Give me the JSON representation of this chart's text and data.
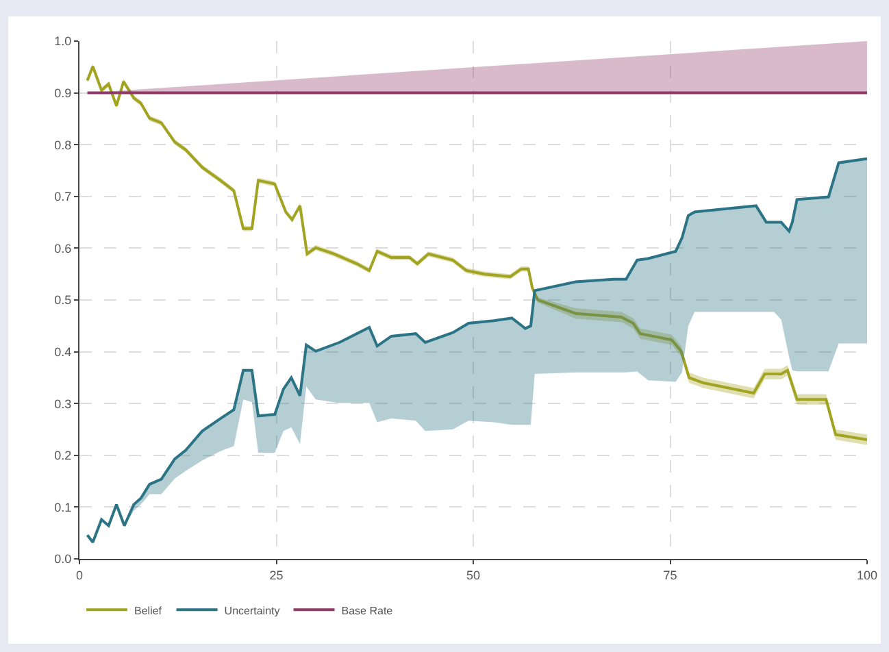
{
  "chart_data": {
    "type": "line",
    "xlim": [
      0,
      100
    ],
    "xticks": [
      0,
      25,
      50,
      75,
      100
    ],
    "ylim": [
      0,
      1
    ],
    "yticks": [
      {
        "value": 0,
        "label": "0.0"
      },
      0.1,
      0.2,
      0.3,
      0.4,
      0.5,
      0.6,
      0.7,
      0.8,
      0.9,
      {
        "value": 1,
        "label": "1.0"
      }
    ],
    "grid": true,
    "legend": "bottom left",
    "marker": "none",
    "line_style": "solid",
    "series": [
      {
        "name": "Belief",
        "color": "#a3a322",
        "x": [
          1,
          1.7,
          2.8,
          3.7,
          4.7,
          5.6,
          6.9,
          7.8,
          8.9,
          10.4,
          12.1,
          13.5,
          15.6,
          17.9,
          19.6,
          20.8,
          21.9,
          22.7,
          24.8,
          26.2,
          27,
          28,
          28.9,
          30,
          32.3,
          35.2,
          36.8,
          37.8,
          39.6,
          41.9,
          42.9,
          44.3,
          47.4,
          49.1,
          51.4,
          54.7,
          56.1,
          57,
          57.5,
          58.2,
          63,
          68.8,
          70.3,
          71.2,
          75.2,
          76.4,
          77.4,
          79.2,
          85.6,
          87,
          89.1,
          89.9,
          91.1,
          94.8,
          96,
          100
        ],
        "values": [
          0.924,
          0.951,
          0.905,
          0.917,
          0.875,
          0.922,
          0.89,
          0.88,
          0.851,
          0.842,
          0.805,
          0.79,
          0.756,
          0.731,
          0.711,
          0.638,
          0.638,
          0.731,
          0.724,
          0.67,
          0.655,
          0.682,
          0.589,
          0.601,
          0.589,
          0.57,
          0.557,
          0.594,
          0.582,
          0.582,
          0.57,
          0.589,
          0.577,
          0.557,
          0.55,
          0.545,
          0.56,
          0.56,
          0.523,
          0.5,
          0.474,
          0.467,
          0.455,
          0.435,
          0.423,
          0.401,
          0.35,
          0.34,
          0.32,
          0.357,
          0.357,
          0.364,
          0.308,
          0.308,
          0.24,
          0.23
        ],
        "lower": [
          0.919,
          0.946,
          0.9,
          0.912,
          0.87,
          0.917,
          0.885,
          0.875,
          0.846,
          0.837,
          0.8,
          0.785,
          0.751,
          0.726,
          0.706,
          0.633,
          0.633,
          0.726,
          0.719,
          0.665,
          0.65,
          0.677,
          0.584,
          0.596,
          0.584,
          0.565,
          0.552,
          0.589,
          0.577,
          0.577,
          0.565,
          0.584,
          0.572,
          0.552,
          0.545,
          0.54,
          0.555,
          0.555,
          0.518,
          0.495,
          0.464,
          0.457,
          0.445,
          0.425,
          0.413,
          0.391,
          0.34,
          0.33,
          0.31,
          0.347,
          0.347,
          0.354,
          0.298,
          0.298,
          0.23,
          0.22
        ],
        "upper": [
          0.929,
          0.956,
          0.91,
          0.922,
          0.88,
          0.927,
          0.895,
          0.885,
          0.856,
          0.847,
          0.81,
          0.795,
          0.761,
          0.736,
          0.716,
          0.643,
          0.643,
          0.736,
          0.729,
          0.675,
          0.66,
          0.687,
          0.594,
          0.606,
          0.594,
          0.575,
          0.562,
          0.599,
          0.587,
          0.587,
          0.575,
          0.594,
          0.582,
          0.562,
          0.555,
          0.55,
          0.565,
          0.565,
          0.528,
          0.505,
          0.484,
          0.477,
          0.465,
          0.445,
          0.433,
          0.411,
          0.36,
          0.35,
          0.33,
          0.367,
          0.367,
          0.374,
          0.318,
          0.318,
          0.25,
          0.24
        ]
      },
      {
        "name": "Uncertainty",
        "color": "#2b7485",
        "x": [
          1,
          1.7,
          2.8,
          3.7,
          4.7,
          5.7,
          6.9,
          7.8,
          8.9,
          10.4,
          12.1,
          13.5,
          15.6,
          17.9,
          19.6,
          20.8,
          21.9,
          22.7,
          24.8,
          25.9,
          26.9,
          28,
          28.8,
          30,
          33,
          36.8,
          37.8,
          39.6,
          42.7,
          43.9,
          47.4,
          49.4,
          52.6,
          54.9,
          56.6,
          57.3,
          57.8,
          63,
          67.7,
          69.4,
          70.8,
          72.2,
          75.7,
          76.5,
          77.3,
          78.1,
          85.9,
          87.2,
          88.2,
          89.1,
          90.1,
          90.5,
          91.1,
          95.1,
          96.4,
          100
        ],
        "values": [
          0.046,
          0.032,
          0.076,
          0.064,
          0.105,
          0.064,
          0.105,
          0.117,
          0.144,
          0.154,
          0.193,
          0.21,
          0.247,
          0.271,
          0.288,
          0.364,
          0.364,
          0.276,
          0.279,
          0.328,
          0.35,
          0.315,
          0.413,
          0.401,
          0.418,
          0.447,
          0.411,
          0.43,
          0.435,
          0.418,
          0.437,
          0.455,
          0.46,
          0.465,
          0.445,
          0.45,
          0.518,
          0.535,
          0.54,
          0.54,
          0.577,
          0.58,
          0.594,
          0.62,
          0.663,
          0.67,
          0.682,
          0.65,
          0.65,
          0.65,
          0.633,
          0.65,
          0.694,
          0.699,
          0.765,
          0.773
        ],
        "lower": [
          0.046,
          0.032,
          0.076,
          0.064,
          0.105,
          0.064,
          0.093,
          0.105,
          0.125,
          0.125,
          0.155,
          0.17,
          0.19,
          0.208,
          0.218,
          0.308,
          0.303,
          0.205,
          0.205,
          0.247,
          0.254,
          0.222,
          0.333,
          0.308,
          0.301,
          0.301,
          0.264,
          0.271,
          0.267,
          0.247,
          0.25,
          0.267,
          0.264,
          0.259,
          0.259,
          0.259,
          0.357,
          0.36,
          0.36,
          0.36,
          0.362,
          0.345,
          0.342,
          0.36,
          0.45,
          0.477,
          0.477,
          0.477,
          0.477,
          0.462,
          0.39,
          0.364,
          0.362,
          0.362,
          0.416,
          0.416
        ],
        "upper": [
          0.046,
          0.032,
          0.076,
          0.064,
          0.105,
          0.064,
          0.105,
          0.117,
          0.144,
          0.154,
          0.193,
          0.21,
          0.247,
          0.271,
          0.288,
          0.364,
          0.364,
          0.276,
          0.279,
          0.328,
          0.35,
          0.315,
          0.413,
          0.401,
          0.418,
          0.447,
          0.411,
          0.43,
          0.435,
          0.418,
          0.437,
          0.455,
          0.46,
          0.465,
          0.445,
          0.45,
          0.518,
          0.535,
          0.54,
          0.54,
          0.577,
          0.58,
          0.594,
          0.62,
          0.663,
          0.67,
          0.682,
          0.65,
          0.65,
          0.65,
          0.633,
          0.65,
          0.694,
          0.699,
          0.765,
          0.773
        ]
      },
      {
        "name": "Base Rate",
        "color": "#8e3a66",
        "x": [
          1,
          100
        ],
        "values": [
          0.9,
          0.9
        ],
        "lower": [
          0.9,
          0.9
        ],
        "upper": [
          0.9,
          1
        ]
      }
    ]
  }
}
